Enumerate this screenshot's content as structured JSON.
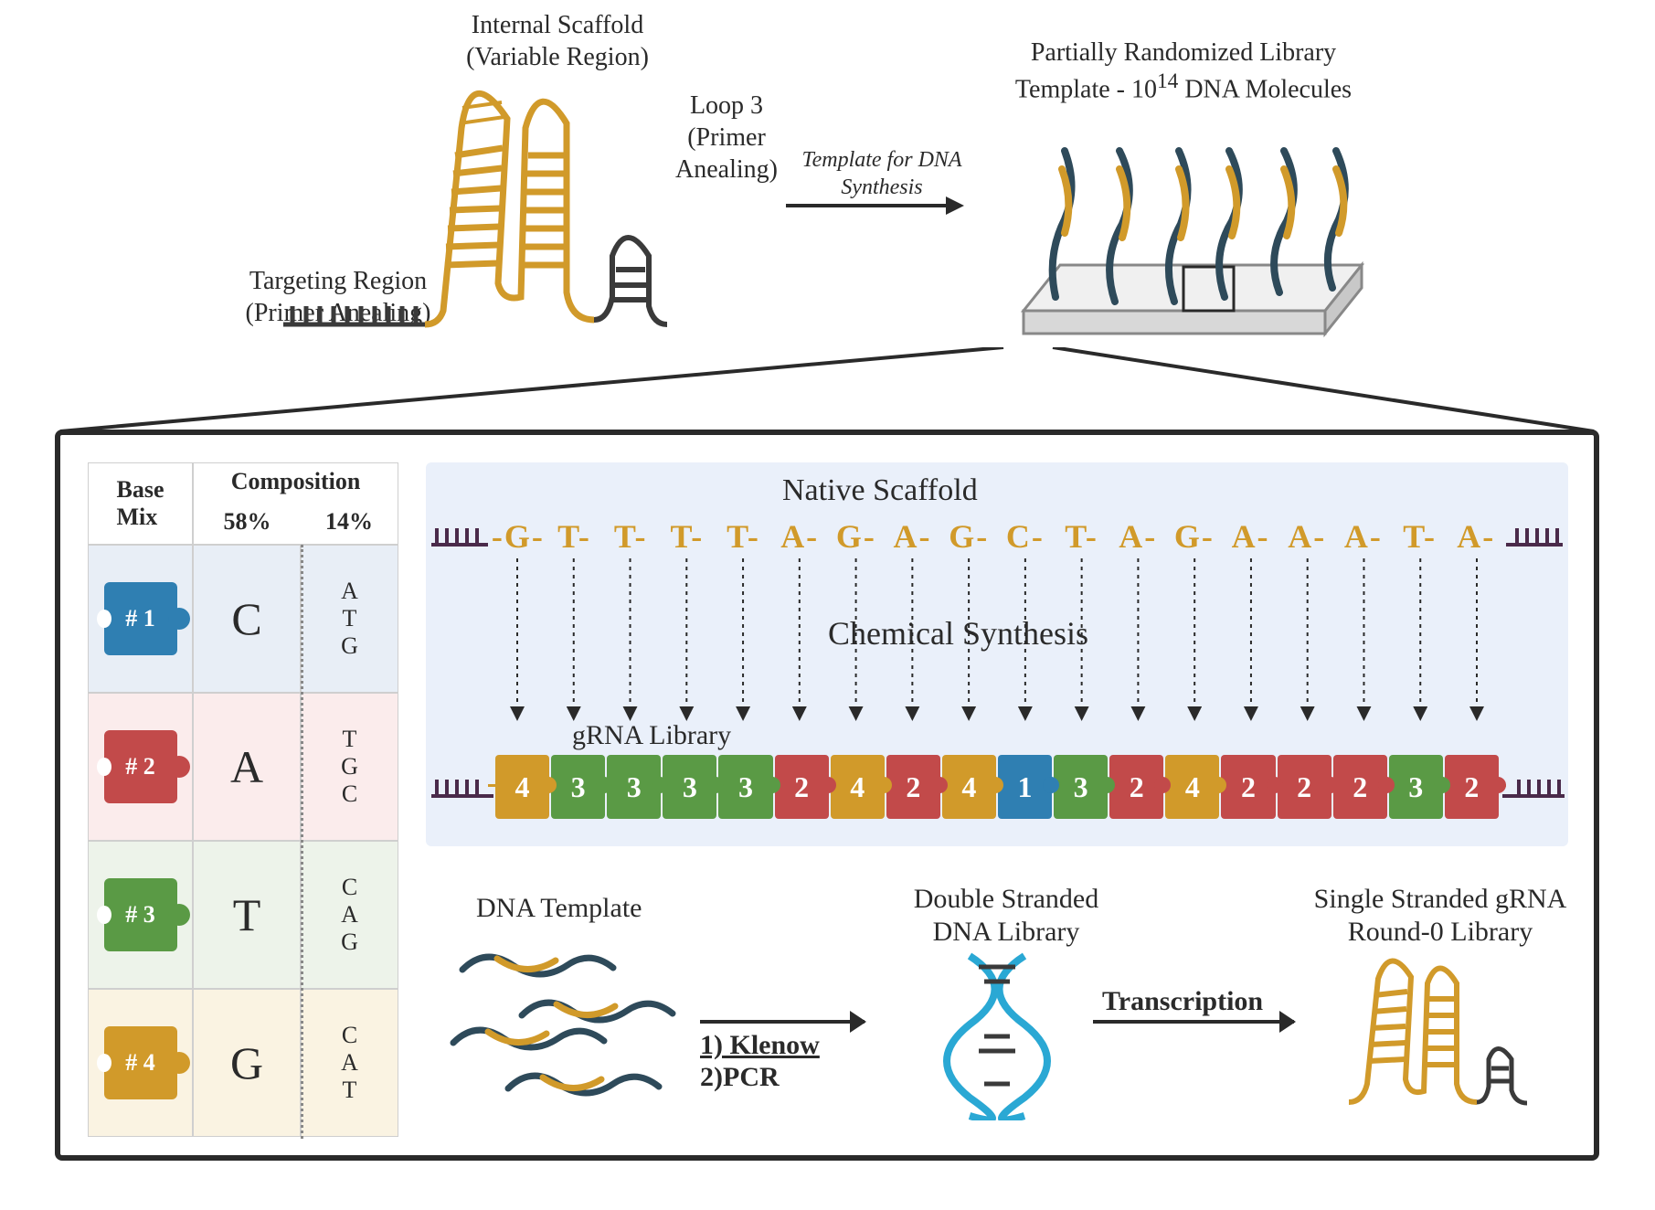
{
  "top": {
    "internal_scaffold_label": "Internal Scaffold\n(Variable  Region)",
    "loop3_label": "Loop 3\n(Primer\nAnealing)",
    "targeting_label": "Targeting Region\n(Primer Anealing)",
    "library_label": "Partially Randomized Library\nTemplate - 10",
    "library_exp": "14",
    "library_suffix": " DNA Molecules",
    "template_arrow_label": "Template for DNA\nSynthesis",
    "colors": {
      "gold": "#d19a2a",
      "dark": "#3a3a3a",
      "darkblue": "#2e4a5a"
    }
  },
  "table": {
    "header_base": "Base\nMix",
    "header_comp": "Composition",
    "header_58": "58%",
    "header_14": "14%",
    "rows": [
      {
        "id": "# 1",
        "bg": "#e8eef6",
        "piece_color": "#2f7fb2",
        "major": "C",
        "minor": "A\nT\nG"
      },
      {
        "id": "# 2",
        "bg": "#fbecec",
        "piece_color": "#c24a4a",
        "major": "A",
        "minor": "T\nG\nC"
      },
      {
        "id": "# 3",
        "bg": "#edf3ea",
        "piece_color": "#5a9a45",
        "major": "T",
        "minor": "C\nA\nG"
      },
      {
        "id": "# 4",
        "bg": "#faf3e2",
        "piece_color": "#d19a2a",
        "major": "G",
        "minor": "C\nA\nT"
      }
    ]
  },
  "panel": {
    "native_label": "Native Scaffold",
    "chem_label": "Chemical Synthesis",
    "grna_label": "gRNA Library",
    "sequence": [
      "G",
      "T",
      "T",
      "T",
      "T",
      "A",
      "G",
      "A",
      "G",
      "C",
      "T",
      "A",
      "G",
      "A",
      "A",
      "A",
      "T",
      "A"
    ],
    "seq_color": "#d19a2a",
    "comb_color": "#4a2a4a",
    "puzzle_map": [
      4,
      3,
      3,
      3,
      3,
      2,
      4,
      2,
      4,
      1,
      3,
      2,
      4,
      2,
      2,
      2,
      3,
      2
    ],
    "piece_colors": {
      "1": "#2f7fb2",
      "2": "#c24a4a",
      "3": "#5a9a45",
      "4": "#d19a2a"
    },
    "bg": "#eaf0fa"
  },
  "flow": {
    "dna_template": "DNA Template",
    "step1": "1) Klenow",
    "step2": "2)PCR",
    "ds_library": "Double Stranded\nDNA Library",
    "transcription": "Transcription",
    "ss_library": "Single Stranded gRNA\nRound-0 Library",
    "helix_colors": [
      "#2aa8d4",
      "#3a3a3a"
    ],
    "strand_colors": {
      "gold": "#d19a2a",
      "dark": "#2e4a5a"
    }
  },
  "style": {
    "title_fontsize": 30,
    "label_fontsize": 28,
    "seq_fontsize": 36,
    "border_color": "#2a2a2a"
  }
}
